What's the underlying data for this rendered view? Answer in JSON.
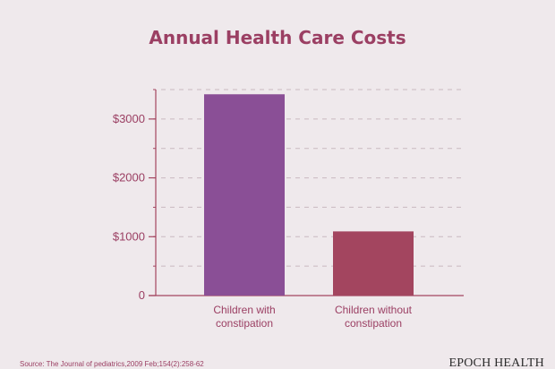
{
  "chart_data": {
    "type": "bar",
    "title": "Annual Health Care Costs",
    "categories": [
      "Children with constipation",
      "Children without constipation"
    ],
    "category_lines": [
      [
        "Children with",
        "constipation"
      ],
      [
        "Children without",
        "constipation"
      ]
    ],
    "values": [
      3420,
      1090
    ],
    "colors": [
      "#8a4f96",
      "#a3455f"
    ],
    "ylim": [
      0,
      3500
    ],
    "yticks": [
      0,
      1000,
      2000,
      3000
    ],
    "ytick_labels": [
      "0",
      "$1000",
      "$2000",
      "$3000"
    ],
    "grid": true,
    "xlabel": "",
    "ylabel": ""
  },
  "footer": {
    "source": "Source: The Journal of pediatrics,2009 Feb;154(2):258-62",
    "brand": "EPOCH HEALTH"
  },
  "colors": {
    "background": "#efe9ec",
    "title": "#9b3f63",
    "axis_text": "#9b3f63",
    "axis_line": "#a3455f"
  }
}
